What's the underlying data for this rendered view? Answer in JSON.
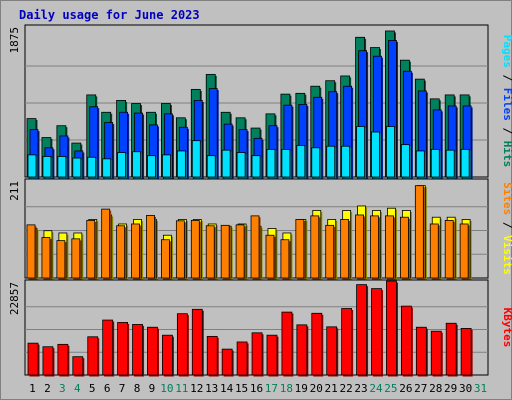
{
  "title": "Daily usage for June 2023",
  "colors": {
    "background": "#c0c0c0",
    "plot_background": "#c0c0c0",
    "grid": "#808080",
    "title": "#0000c0",
    "hits": "#00805c",
    "files": "#0040ff",
    "pages": "#00e0ff",
    "visits": "#ffff00",
    "sites": "#ff8000",
    "kbytes": "#ff0000",
    "weekday_label": "#000000",
    "weekend_label": "#00805c"
  },
  "chart_data": [
    {
      "type": "bar",
      "name": "hits-files-pages",
      "categories": [
        "1",
        "2",
        "3",
        "4",
        "5",
        "6",
        "7",
        "8",
        "9",
        "10",
        "11",
        "12",
        "13",
        "14",
        "15",
        "16",
        "17",
        "18",
        "19",
        "20",
        "21",
        "22",
        "23",
        "24",
        "25",
        "26",
        "27",
        "28",
        "29",
        "30",
        "31"
      ],
      "weekend_days": [
        "3",
        "4",
        "10",
        "11",
        "17",
        "18",
        "24",
        "25",
        "31"
      ],
      "ylabel_parts": [
        "Pages",
        " / ",
        "Files",
        " / ",
        "Hits"
      ],
      "ylim": [
        0,
        1875
      ],
      "ytick_label": "1875",
      "series": [
        {
          "name": "Hits",
          "values": [
            740,
            500,
            650,
            430,
            1040,
            820,
            970,
            930,
            820,
            930,
            750,
            1110,
            1300,
            820,
            750,
            620,
            800,
            1050,
            1060,
            1150,
            1220,
            1280,
            1770,
            1640,
            1850,
            1480,
            1240,
            990,
            1040,
            1040,
            0
          ]
        },
        {
          "name": "Files",
          "values": [
            600,
            370,
            520,
            330,
            890,
            690,
            820,
            810,
            660,
            800,
            630,
            970,
            1120,
            670,
            600,
            490,
            650,
            910,
            920,
            1010,
            1080,
            1150,
            1600,
            1530,
            1730,
            1340,
            1090,
            850,
            900,
            900,
            0
          ]
        },
        {
          "name": "Pages",
          "values": [
            280,
            260,
            260,
            240,
            250,
            230,
            310,
            320,
            270,
            280,
            330,
            460,
            270,
            340,
            310,
            270,
            350,
            350,
            400,
            370,
            390,
            390,
            640,
            570,
            640,
            410,
            330,
            350,
            340,
            350,
            0
          ]
        }
      ]
    },
    {
      "type": "bar",
      "name": "visits-sites",
      "categories": [
        "1",
        "2",
        "3",
        "4",
        "5",
        "6",
        "7",
        "8",
        "9",
        "10",
        "11",
        "12",
        "13",
        "14",
        "15",
        "16",
        "17",
        "18",
        "19",
        "20",
        "21",
        "22",
        "23",
        "24",
        "25",
        "26",
        "27",
        "28",
        "29",
        "30",
        "31"
      ],
      "ylabel_parts": [
        "Sites",
        " / ",
        "Visits"
      ],
      "ylim": [
        0,
        211
      ],
      "ytick_label": "211",
      "series": [
        {
          "name": "Visits",
          "values": [
            110,
            105,
            100,
            100,
            130,
            140,
            120,
            130,
            130,
            95,
            130,
            130,
            120,
            115,
            120,
            115,
            110,
            100,
            130,
            150,
            130,
            150,
            160,
            150,
            155,
            150,
            205,
            135,
            135,
            130,
            0
          ]
        },
        {
          "name": "Sites",
          "values": [
            118,
            90,
            83,
            87,
            128,
            153,
            116,
            120,
            139,
            85,
            127,
            128,
            116,
            117,
            118,
            138,
            95,
            85,
            130,
            138,
            117,
            130,
            140,
            138,
            138,
            135,
            205,
            120,
            128,
            120,
            0
          ]
        }
      ]
    },
    {
      "type": "bar",
      "name": "kbytes",
      "categories": [
        "1",
        "2",
        "3",
        "4",
        "5",
        "6",
        "7",
        "8",
        "9",
        "10",
        "11",
        "12",
        "13",
        "14",
        "15",
        "16",
        "17",
        "18",
        "19",
        "20",
        "21",
        "22",
        "23",
        "24",
        "25",
        "26",
        "27",
        "28",
        "29",
        "30",
        "31"
      ],
      "ylabel_parts": [
        "KBytes"
      ],
      "ylim": [
        0,
        22857
      ],
      "ytick_label": "22857",
      "series": [
        {
          "name": "KBytes",
          "values": [
            8000,
            7100,
            7700,
            4600,
            9600,
            13800,
            13200,
            12700,
            12000,
            10000,
            15400,
            16500,
            9700,
            6500,
            8300,
            10600,
            10000,
            15800,
            12600,
            15500,
            12100,
            16700,
            22700,
            21700,
            23600,
            17300,
            12000,
            11000,
            13000,
            11700,
            0
          ]
        }
      ]
    }
  ]
}
